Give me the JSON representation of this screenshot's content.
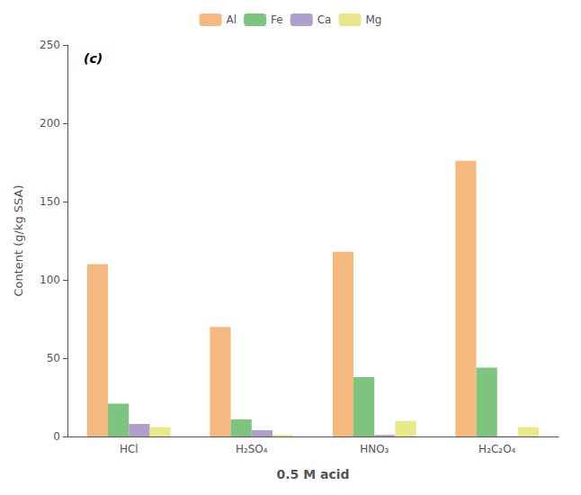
{
  "chart_data": {
    "type": "bar",
    "categories": [
      "HCl",
      "H₂SO₄",
      "HNO₃",
      "H₂C₂O₄"
    ],
    "series": [
      {
        "name": "Al",
        "color": "#F5B97F",
        "values": [
          110,
          70,
          118,
          176
        ]
      },
      {
        "name": "Fe",
        "color": "#7DC47F",
        "values": [
          21,
          11,
          38,
          44
        ]
      },
      {
        "name": "Ca",
        "color": "#ADA0CC",
        "values": [
          8,
          4,
          1,
          0.2
        ]
      },
      {
        "name": "Mg",
        "color": "#E8E888",
        "values": [
          6,
          1,
          10,
          6
        ]
      }
    ],
    "xlabel": "0.5 M acid",
    "ylabel": "Content (g/kg SSA)",
    "ylim": [
      0,
      250
    ],
    "yticks": [
      0,
      50,
      100,
      150,
      200,
      250
    ],
    "grid": false,
    "legend": "top",
    "annotation": "(c)"
  }
}
